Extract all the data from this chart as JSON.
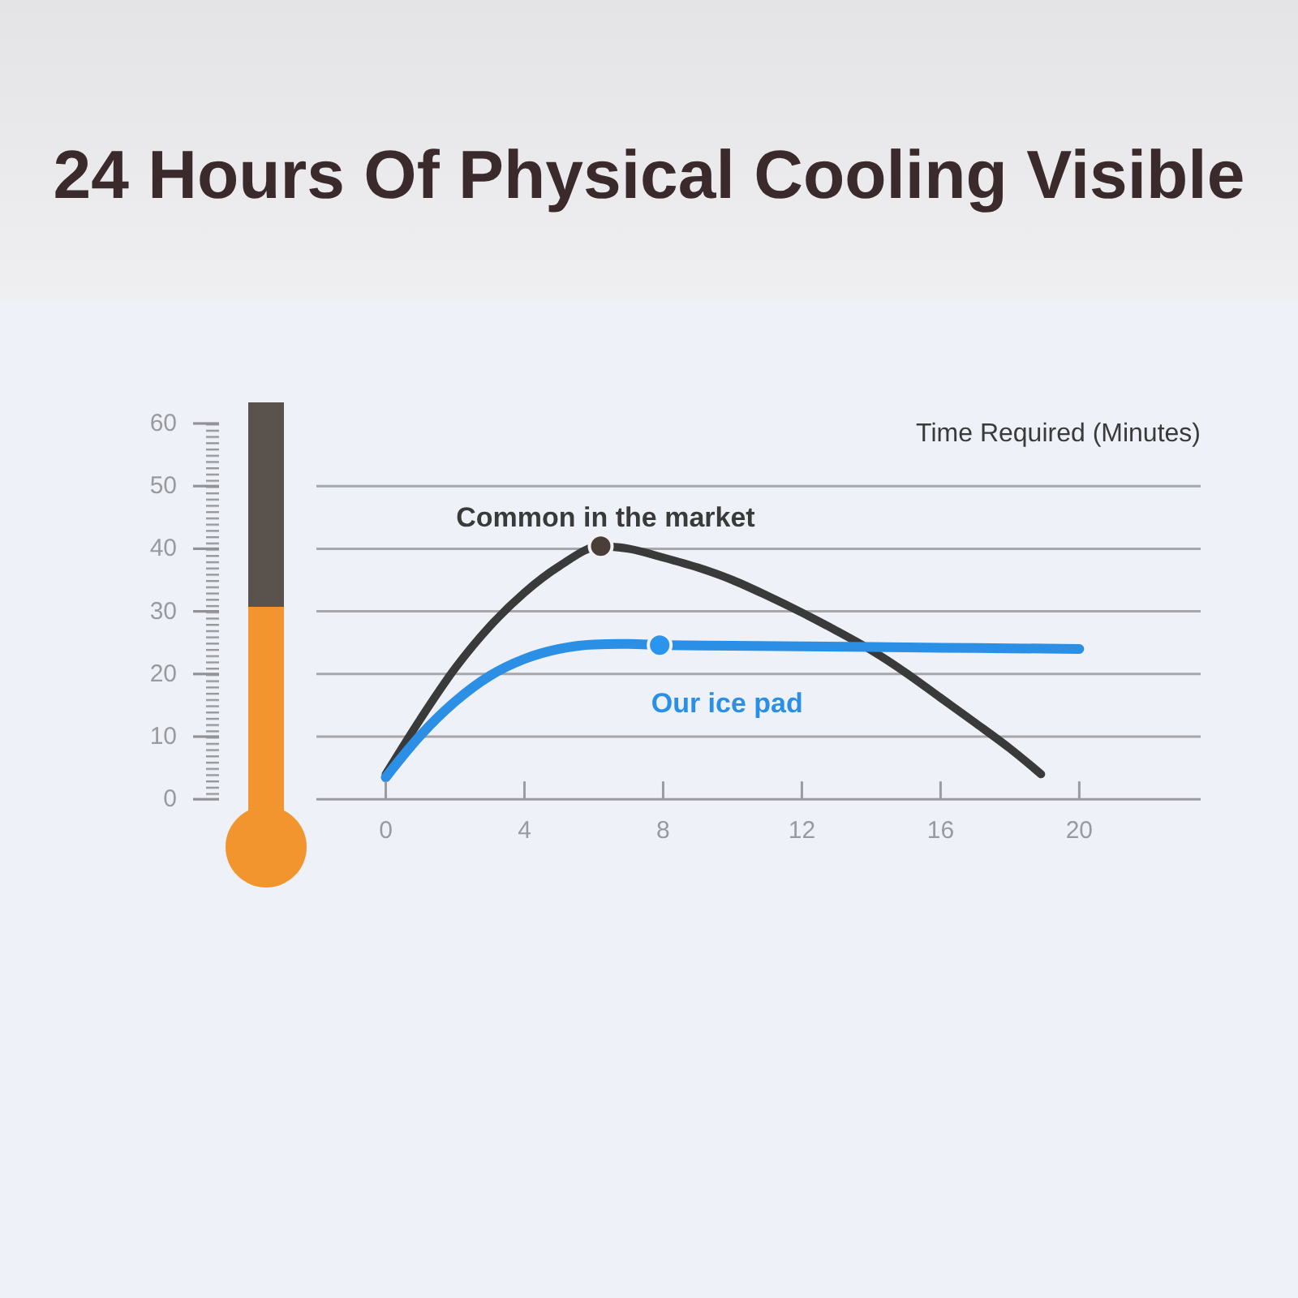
{
  "chart_data": {
    "type": "line",
    "title": "24 Hours Of Physical Cooling Visible",
    "xlabel": "Time Required (Minutes)",
    "xlim": [
      -2,
      23.5
    ],
    "xticks": [
      0,
      4,
      8,
      12,
      16,
      20
    ],
    "ylim": [
      0,
      60
    ],
    "yticks": [
      0,
      10,
      20,
      30,
      40,
      50,
      60
    ],
    "grid": "y",
    "legend": false,
    "line_style": "solid",
    "marker": "none",
    "series": [
      {
        "name": "Common in the market",
        "color": "#3a3a3a",
        "x": [
          0,
          1,
          2,
          3,
          4,
          5,
          6.2,
          7,
          8,
          9,
          10,
          11,
          12,
          13,
          14,
          15,
          16,
          17,
          18,
          18.9
        ],
        "values": [
          4,
          12.8,
          20.9,
          27.6,
          33,
          37.2,
          40.4,
          40,
          38.6,
          37,
          35,
          32.5,
          29.8,
          26.9,
          23.8,
          20.2,
          16.2,
          12.2,
          8.1,
          4
        ]
      },
      {
        "name": "Our ice pad",
        "color": "#2b8fe6",
        "x": [
          0,
          1,
          2,
          3,
          4,
          5,
          6,
          7,
          8,
          10,
          12,
          14,
          16,
          18,
          20
        ],
        "values": [
          3.5,
          10.2,
          15.6,
          19.7,
          22.4,
          24,
          24.7,
          24.8,
          24.6,
          24.5,
          24.4,
          24.3,
          24.2,
          24.1,
          24
        ]
      },
      {
        "type": "scatter",
        "marker": "circle",
        "color": "#4a3e3b",
        "x": [
          6.2
        ],
        "values": [
          40.4
        ]
      },
      {
        "type": "scatter",
        "marker": "circle",
        "color": "#2b95ee",
        "x": [
          7.9
        ],
        "values": [
          24.6
        ]
      }
    ]
  }
}
